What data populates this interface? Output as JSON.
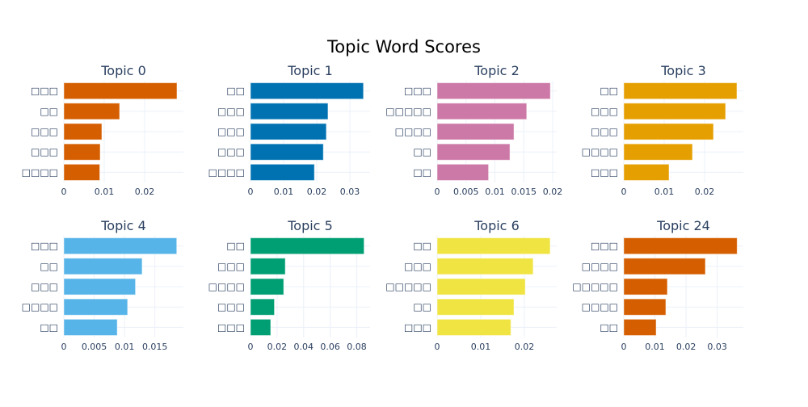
{
  "chart_data": {
    "type": "bar",
    "title": "Topic Word Scores",
    "orientation": "horizontal",
    "grid": true,
    "subplots": [
      {
        "title": "Topic 0",
        "color": "#D55E00",
        "labels": [
          "□□□",
          "□□",
          "□□□",
          "□□□",
          "□□□□"
        ],
        "values": [
          0.028,
          0.0138,
          0.0094,
          0.009,
          0.0089
        ],
        "xlim": [
          0,
          0.0296
        ],
        "ticks": [
          0,
          0.01,
          0.02
        ],
        "tick_labels": [
          "0",
          "0.01",
          "0.02"
        ]
      },
      {
        "title": "Topic 1",
        "color": "#0072B2",
        "labels": [
          "□□",
          "□□□",
          "□□□",
          "□□□",
          "□□□□"
        ],
        "values": [
          0.0341,
          0.0234,
          0.0229,
          0.022,
          0.0193
        ],
        "xlim": [
          0,
          0.0361
        ],
        "ticks": [
          0,
          0.01,
          0.02,
          0.03
        ],
        "tick_labels": [
          "0",
          "0.01",
          "0.02",
          "0.03"
        ]
      },
      {
        "title": "Topic 2",
        "color": "#CC79A7",
        "labels": [
          "□□□",
          "□□□□□",
          "□□□□",
          "□□",
          "□□"
        ],
        "values": [
          0.0196,
          0.0155,
          0.0133,
          0.0126,
          0.0089
        ],
        "xlim": [
          0,
          0.0207
        ],
        "ticks": [
          0,
          0.005,
          0.01,
          0.015,
          0.02
        ],
        "tick_labels": [
          "0",
          "0.005",
          "0.01",
          "0.015",
          "0.02"
        ]
      },
      {
        "title": "Topic 3",
        "color": "#E69F00",
        "labels": [
          "□□",
          "□□□",
          "□□□",
          "□□□□",
          "□□□"
        ],
        "values": [
          0.028,
          0.0252,
          0.0222,
          0.017,
          0.0112
        ],
        "xlim": [
          0,
          0.0296
        ],
        "ticks": [
          0,
          0.01,
          0.02
        ],
        "tick_labels": [
          "0",
          "0.01",
          "0.02"
        ]
      },
      {
        "title": "Topic 4",
        "color": "#56B4E9",
        "labels": [
          "□□□",
          "□□",
          "□□□",
          "□□□□",
          "□□"
        ],
        "values": [
          0.0186,
          0.0129,
          0.0118,
          0.0105,
          0.0088
        ],
        "xlim": [
          0,
          0.0197
        ],
        "ticks": [
          0,
          0.005,
          0.01,
          0.015
        ],
        "tick_labels": [
          "0",
          "0.005",
          "0.01",
          "0.015"
        ]
      },
      {
        "title": "Topic 5",
        "color": "#009E73",
        "labels": [
          "□□",
          "□□□",
          "□□□□",
          "□□□",
          "□□□"
        ],
        "values": [
          0.0855,
          0.0262,
          0.025,
          0.018,
          0.0152
        ],
        "xlim": [
          0,
          0.09
        ],
        "ticks": [
          0,
          0.02,
          0.04,
          0.06,
          0.08
        ],
        "tick_labels": [
          "0",
          "0.02",
          "0.04",
          "0.06",
          "0.08"
        ]
      },
      {
        "title": "Topic 6",
        "color": "#F0E442",
        "labels": [
          "□□",
          "□□□",
          "□□□□□",
          "□□",
          "□□□"
        ],
        "values": [
          0.0259,
          0.022,
          0.0202,
          0.0176,
          0.0169
        ],
        "xlim": [
          0,
          0.0274
        ],
        "ticks": [
          0,
          0.01,
          0.02
        ],
        "tick_labels": [
          "0",
          "0.01",
          "0.02"
        ]
      },
      {
        "title": "Topic 24",
        "color": "#D55E00",
        "labels": [
          "□□□",
          "□□□□",
          "□□□□□",
          "□□□□",
          "□□"
        ],
        "values": [
          0.0364,
          0.0262,
          0.014,
          0.0135,
          0.0104
        ],
        "xlim": [
          0,
          0.0384
        ],
        "ticks": [
          0,
          0.01,
          0.02,
          0.03
        ],
        "tick_labels": [
          "0",
          "0.01",
          "0.02",
          "0.03"
        ]
      }
    ]
  }
}
